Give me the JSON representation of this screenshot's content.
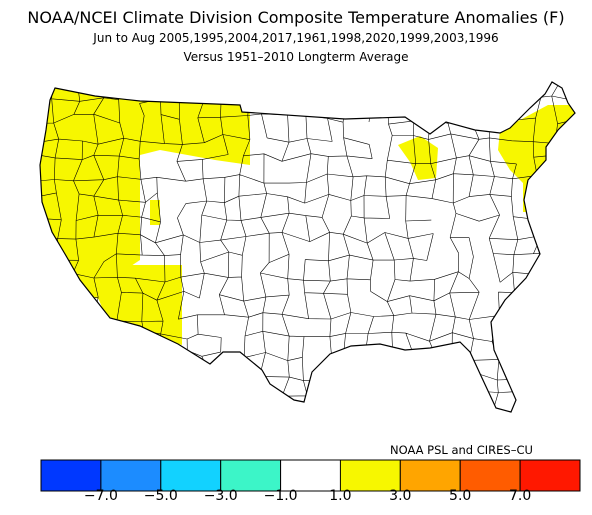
{
  "title": "NOAA/NCEI Climate Division Composite Temperature Anomalies (F)",
  "subtitle": "Jun to Aug  2005,1995,2004,2017,1961,1998,2020,1999,2003,1996",
  "subtitle2": "Versus 1951–2010 Longterm Average",
  "credit": "NOAA PSL and CIRES–CU",
  "map": {
    "region": "Contiguous United States climate divisions",
    "warm_regions": [
      "Pacific Northwest",
      "California",
      "Nevada",
      "Arizona",
      "Montana",
      "Idaho",
      "Michigan",
      "New England",
      "New York",
      "New Jersey"
    ],
    "colors": {
      "anomaly_1_to_3": "#f7f700",
      "near_normal": "#ffffff",
      "outline": "#000000"
    }
  },
  "legend": {
    "colors": [
      "#0038ff",
      "#1c8cff",
      "#12d2ff",
      "#3cf5c8",
      "#ffffff",
      "#f7f700",
      "#ffa500",
      "#ff5c00",
      "#ff1800"
    ],
    "ticks": [
      "−7.0",
      "−5.0",
      "−3.0",
      "−1.0",
      "1.0",
      "3.0",
      "5.0",
      "7.0"
    ]
  }
}
